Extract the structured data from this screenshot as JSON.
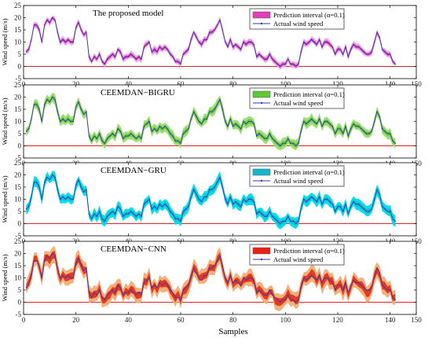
{
  "chart_data": [
    {
      "type": "line",
      "title": "The proposed model",
      "ylabel": "Wind speed (m/s)",
      "xlim": [
        0,
        150
      ],
      "ylim": [
        -5,
        25
      ],
      "xticks": [
        "0",
        "20",
        "40",
        "60",
        "80",
        "100",
        "120",
        "140",
        "150"
      ],
      "yticks": [
        "25",
        "20",
        "15",
        "10",
        "5",
        "0",
        "-5"
      ],
      "legend": [
        "Prediction interval (α=0.1)",
        "Actual wind speed"
      ],
      "interval_color": "#e040b8",
      "interval_light": "#f2a6e0",
      "zero_line_color": "#e52222",
      "band_halfwidth": 1.3
    },
    {
      "type": "line",
      "title": "CEEMDAN−BIGRU",
      "ylabel": "Wind speed (m/s)",
      "xlim": [
        0,
        150
      ],
      "ylim": [
        -5,
        25
      ],
      "xticks": [
        "0",
        "20",
        "40",
        "60",
        "80",
        "100",
        "120",
        "140",
        "150"
      ],
      "yticks": [
        "25",
        "20",
        "15",
        "10",
        "5",
        "0",
        "-5"
      ],
      "legend": [
        "Prediction interval (α=0.1)",
        "Actual wind speed"
      ],
      "interval_color": "#5fc834",
      "interval_light": "#9fe07a",
      "zero_line_color": "#e52222",
      "band_halfwidth": 1.9
    },
    {
      "type": "line",
      "title": "CEEMDAN−GRU",
      "ylabel": "Wind speed (m/s)",
      "xlim": [
        0,
        150
      ],
      "ylim": [
        -5,
        25
      ],
      "xticks": [
        "0",
        "20",
        "40",
        "60",
        "80",
        "100",
        "120",
        "140",
        "150"
      ],
      "yticks": [
        "25",
        "20",
        "15",
        "10",
        "5",
        "0",
        "-5"
      ],
      "legend": [
        "Prediction interval (α=0.1)",
        "Actual wind speed"
      ],
      "interval_color": "#13b8cf",
      "interval_light": "#00e0f0",
      "zero_line_color": "#e52222",
      "band_halfwidth": 2.0
    },
    {
      "type": "line",
      "title": "CEEMDAN−CNN",
      "ylabel": "Wind speed (m/s)",
      "xlabel": "Samples",
      "xlim": [
        0,
        150
      ],
      "ylim": [
        -5,
        25
      ],
      "xticks": [
        "0",
        "20",
        "40",
        "60",
        "80",
        "100",
        "120",
        "140",
        "150"
      ],
      "yticks": [
        "25",
        "20",
        "15",
        "10",
        "5",
        "0",
        "-5"
      ],
      "legend": [
        "Prediction interval (α=0.1)",
        "Actual wind speed"
      ],
      "interval_color": "#e8220f",
      "interval_light": "#f4b27a",
      "zero_line_color": "#e52222",
      "band_halfwidth": 3.2
    }
  ],
  "actual_wind_speed": {
    "x_step": 1,
    "values": [
      6,
      7,
      11,
      17,
      17,
      15,
      10,
      17,
      19,
      18,
      20,
      19,
      14,
      10,
      11,
      10,
      11,
      10,
      10,
      16,
      18,
      15,
      13,
      14,
      4,
      2,
      4,
      3,
      5,
      2,
      1,
      3,
      4,
      5,
      4,
      7,
      6,
      3,
      4,
      4,
      5,
      4,
      3,
      4,
      3,
      8,
      9,
      10,
      6,
      7,
      6,
      8,
      7,
      8,
      7,
      5,
      4,
      2,
      2,
      1,
      5,
      6,
      7,
      11,
      14,
      12,
      10,
      9,
      11,
      11,
      14,
      14,
      15,
      17,
      19,
      15,
      10,
      8,
      11,
      8,
      9,
      8,
      7,
      10,
      9,
      10,
      10,
      9,
      4,
      5,
      4,
      3,
      3,
      5,
      3,
      2,
      1,
      0,
      1,
      1,
      3,
      1,
      1,
      0,
      1,
      6,
      10,
      9,
      10,
      11,
      10,
      9,
      11,
      8,
      10,
      10,
      9,
      8,
      5,
      7,
      7,
      5,
      8,
      4,
      7,
      9,
      8,
      8,
      7,
      6,
      5,
      5,
      6,
      10,
      14,
      12,
      7,
      6,
      5,
      5,
      2,
      1
    ]
  }
}
